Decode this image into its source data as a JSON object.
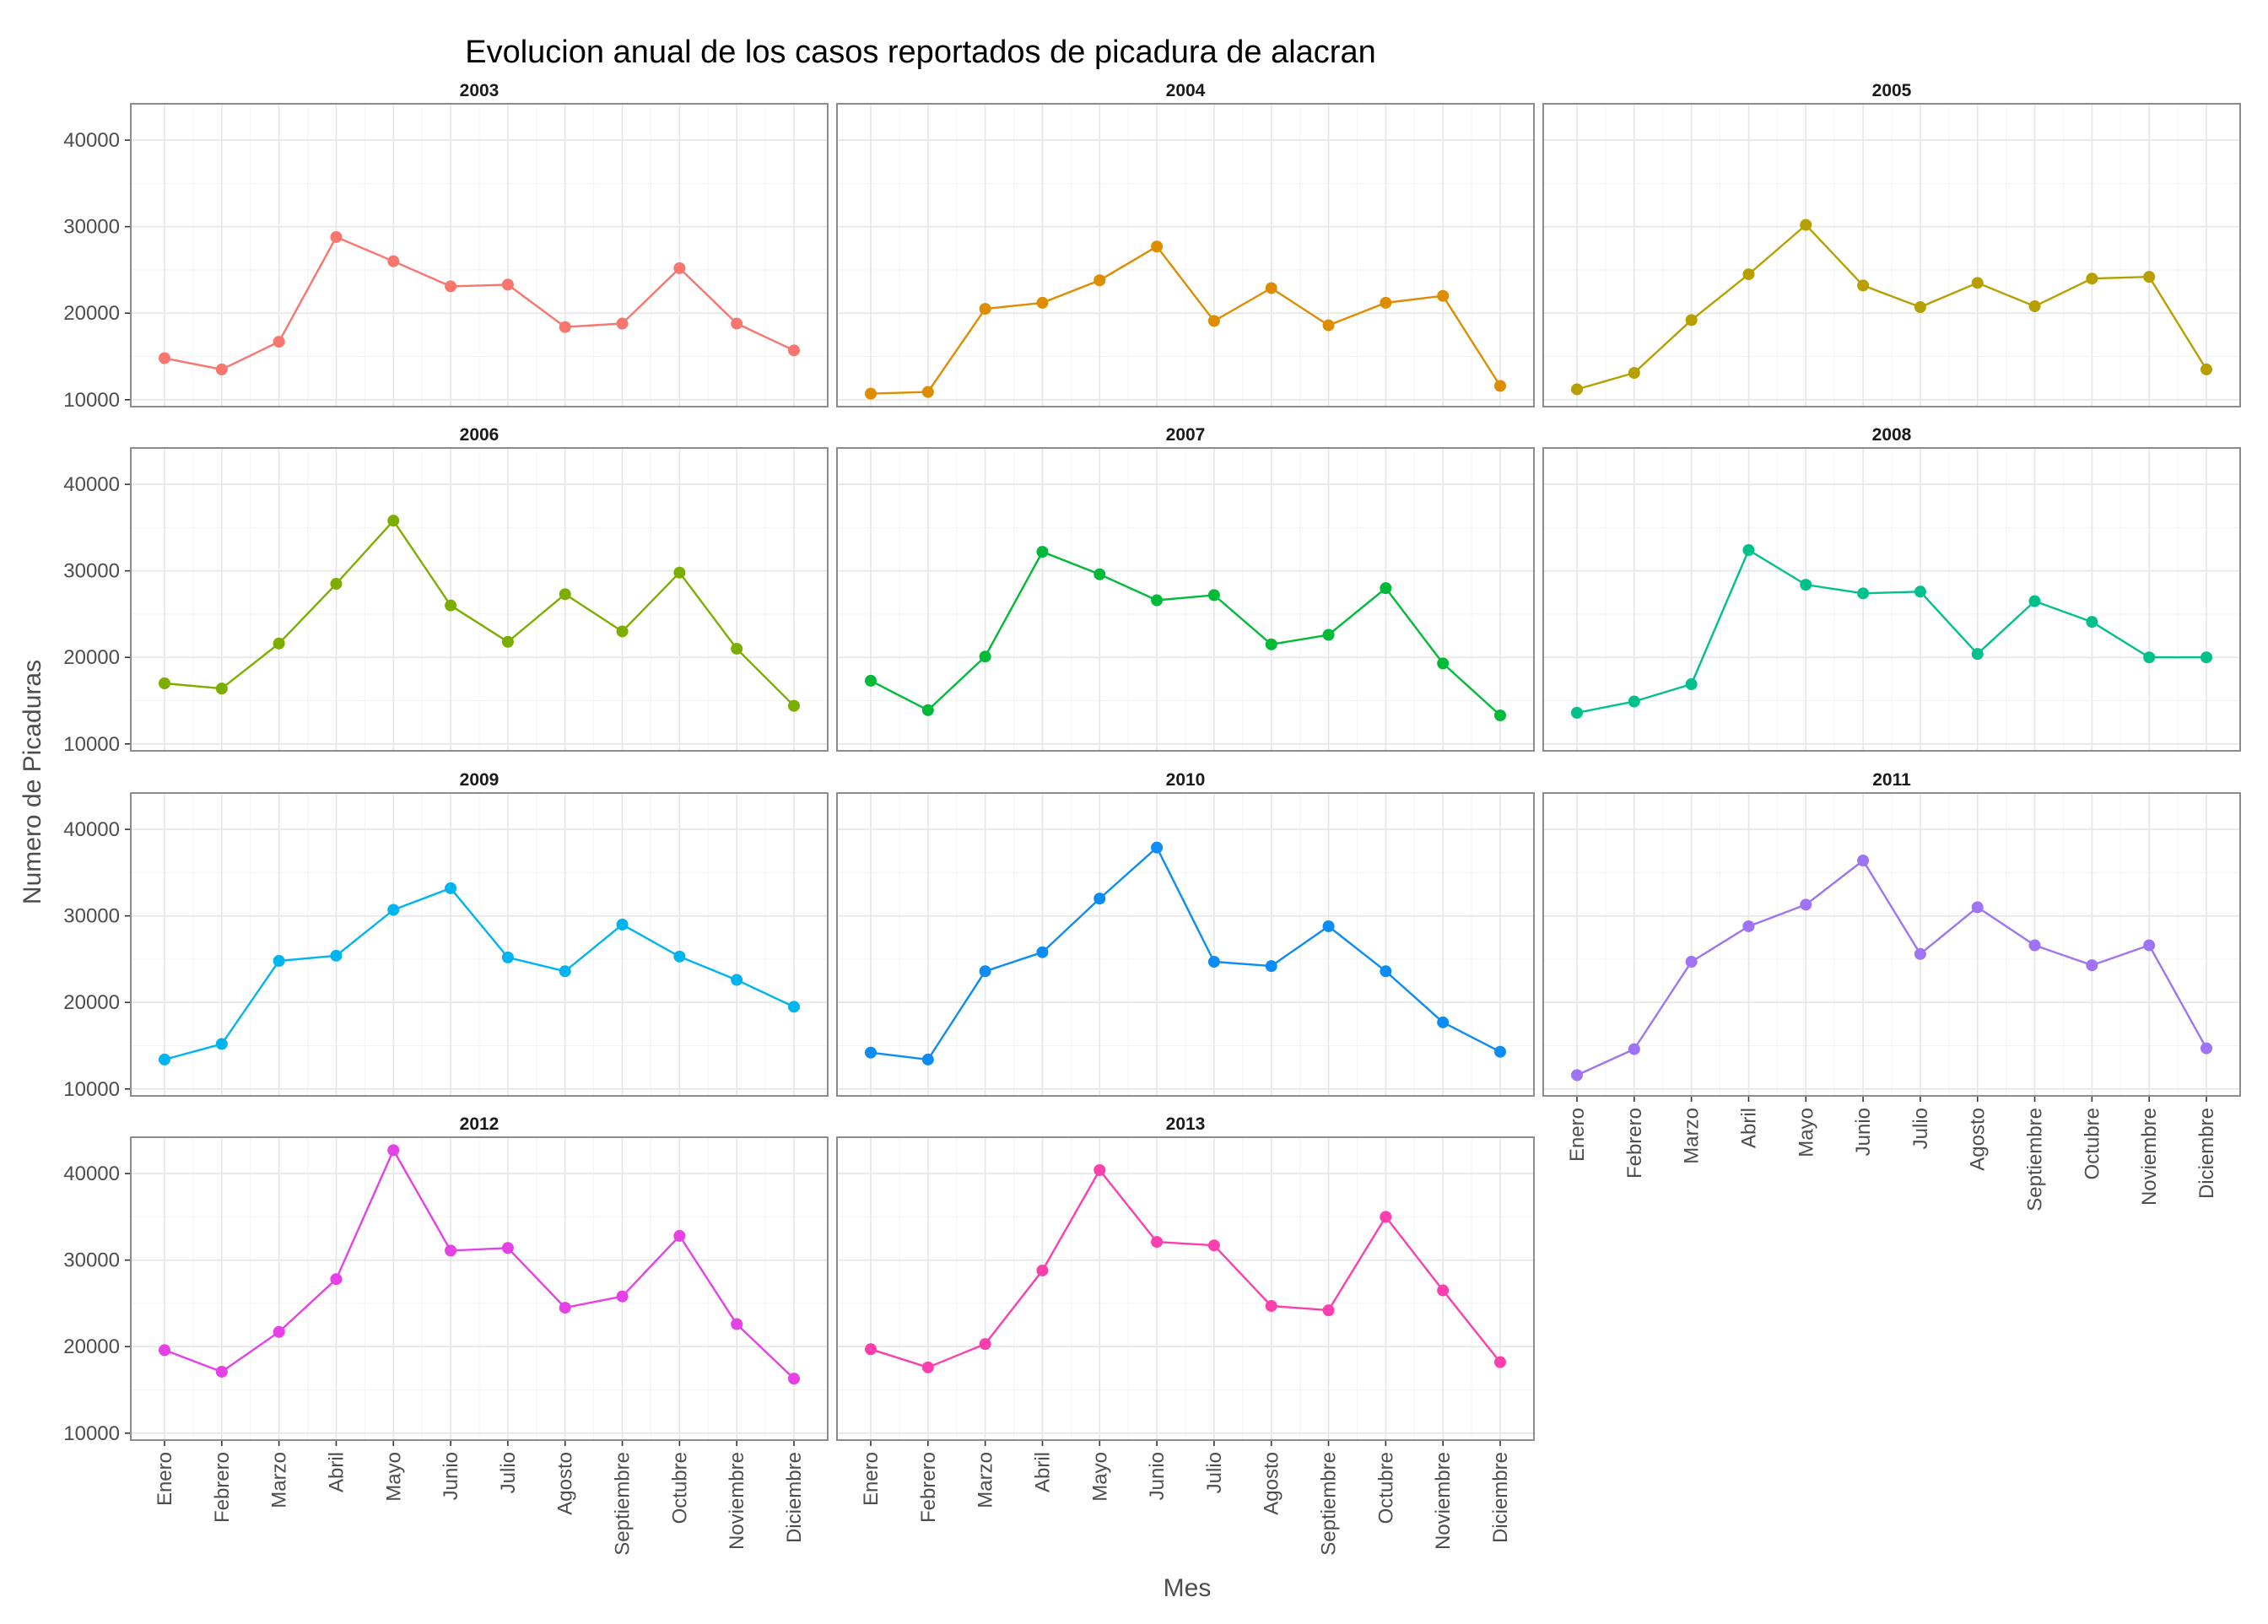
{
  "chart_data": {
    "type": "line",
    "title": "Evolucion anual de los casos reportados de picadura de alacran",
    "xlabel": "Mes",
    "ylabel": "Numero de Picaduras",
    "categories": [
      "Enero",
      "Febrero",
      "Marzo",
      "Abril",
      "Mayo",
      "Junio",
      "Julio",
      "Agosto",
      "Septiembre",
      "Octubre",
      "Noviembre",
      "Diciembre"
    ],
    "y_ticks": [
      10000,
      20000,
      30000,
      40000
    ],
    "y_tick_labels": [
      "10000",
      "20000",
      "30000",
      "40000"
    ],
    "ylim": [
      9200,
      44200
    ],
    "grid": true,
    "facets": "ncol 3, shared axes",
    "series": [
      {
        "name": "2003",
        "color": "#F8766D",
        "values": [
          14800,
          13500,
          16700,
          28800,
          26000,
          23100,
          23300,
          18400,
          18800,
          25200,
          18800,
          15700
        ]
      },
      {
        "name": "2004",
        "color": "#DE8C00",
        "values": [
          10700,
          10900,
          20500,
          21200,
          23800,
          27700,
          19100,
          22900,
          18600,
          21200,
          22000,
          11600
        ]
      },
      {
        "name": "2005",
        "color": "#B79F00",
        "values": [
          11200,
          13100,
          19200,
          24500,
          30200,
          23200,
          20700,
          23500,
          20800,
          24000,
          24200,
          13500
        ]
      },
      {
        "name": "2006",
        "color": "#7CAE00",
        "values": [
          17000,
          16400,
          21600,
          28500,
          35800,
          26000,
          21800,
          27300,
          23000,
          29800,
          21000,
          14400
        ]
      },
      {
        "name": "2007",
        "color": "#00BA38",
        "values": [
          17300,
          13900,
          20100,
          32200,
          29600,
          26600,
          27200,
          21500,
          22600,
          28000,
          19300,
          13300
        ]
      },
      {
        "name": "2008",
        "color": "#00C08B",
        "values": [
          13600,
          14900,
          16900,
          32400,
          28400,
          27400,
          27600,
          20400,
          26500,
          24100,
          20000,
          20000
        ]
      },
      {
        "name": "2009",
        "color": "#00B4F0",
        "values": [
          13400,
          15200,
          24800,
          25400,
          30700,
          33200,
          25200,
          23600,
          29000,
          25300,
          22600,
          19500
        ]
      },
      {
        "name": "2010",
        "color": "#0C8CF4",
        "values": [
          14200,
          13400,
          23600,
          25800,
          32000,
          37900,
          24700,
          24200,
          28800,
          23600,
          17700,
          14300
        ]
      },
      {
        "name": "2011",
        "color": "#9E73F5",
        "values": [
          11600,
          14600,
          24700,
          28800,
          31300,
          36400,
          25600,
          31000,
          26600,
          24300,
          26600,
          14700
        ]
      },
      {
        "name": "2012",
        "color": "#E541E5",
        "values": [
          19600,
          17100,
          21700,
          27800,
          42700,
          31100,
          31400,
          24500,
          25800,
          32800,
          22600,
          16300
        ]
      },
      {
        "name": "2013",
        "color": "#FC3FAE",
        "values": [
          19700,
          17600,
          20300,
          28800,
          40400,
          32100,
          31700,
          24700,
          24200,
          35000,
          26500,
          18200
        ]
      }
    ]
  }
}
